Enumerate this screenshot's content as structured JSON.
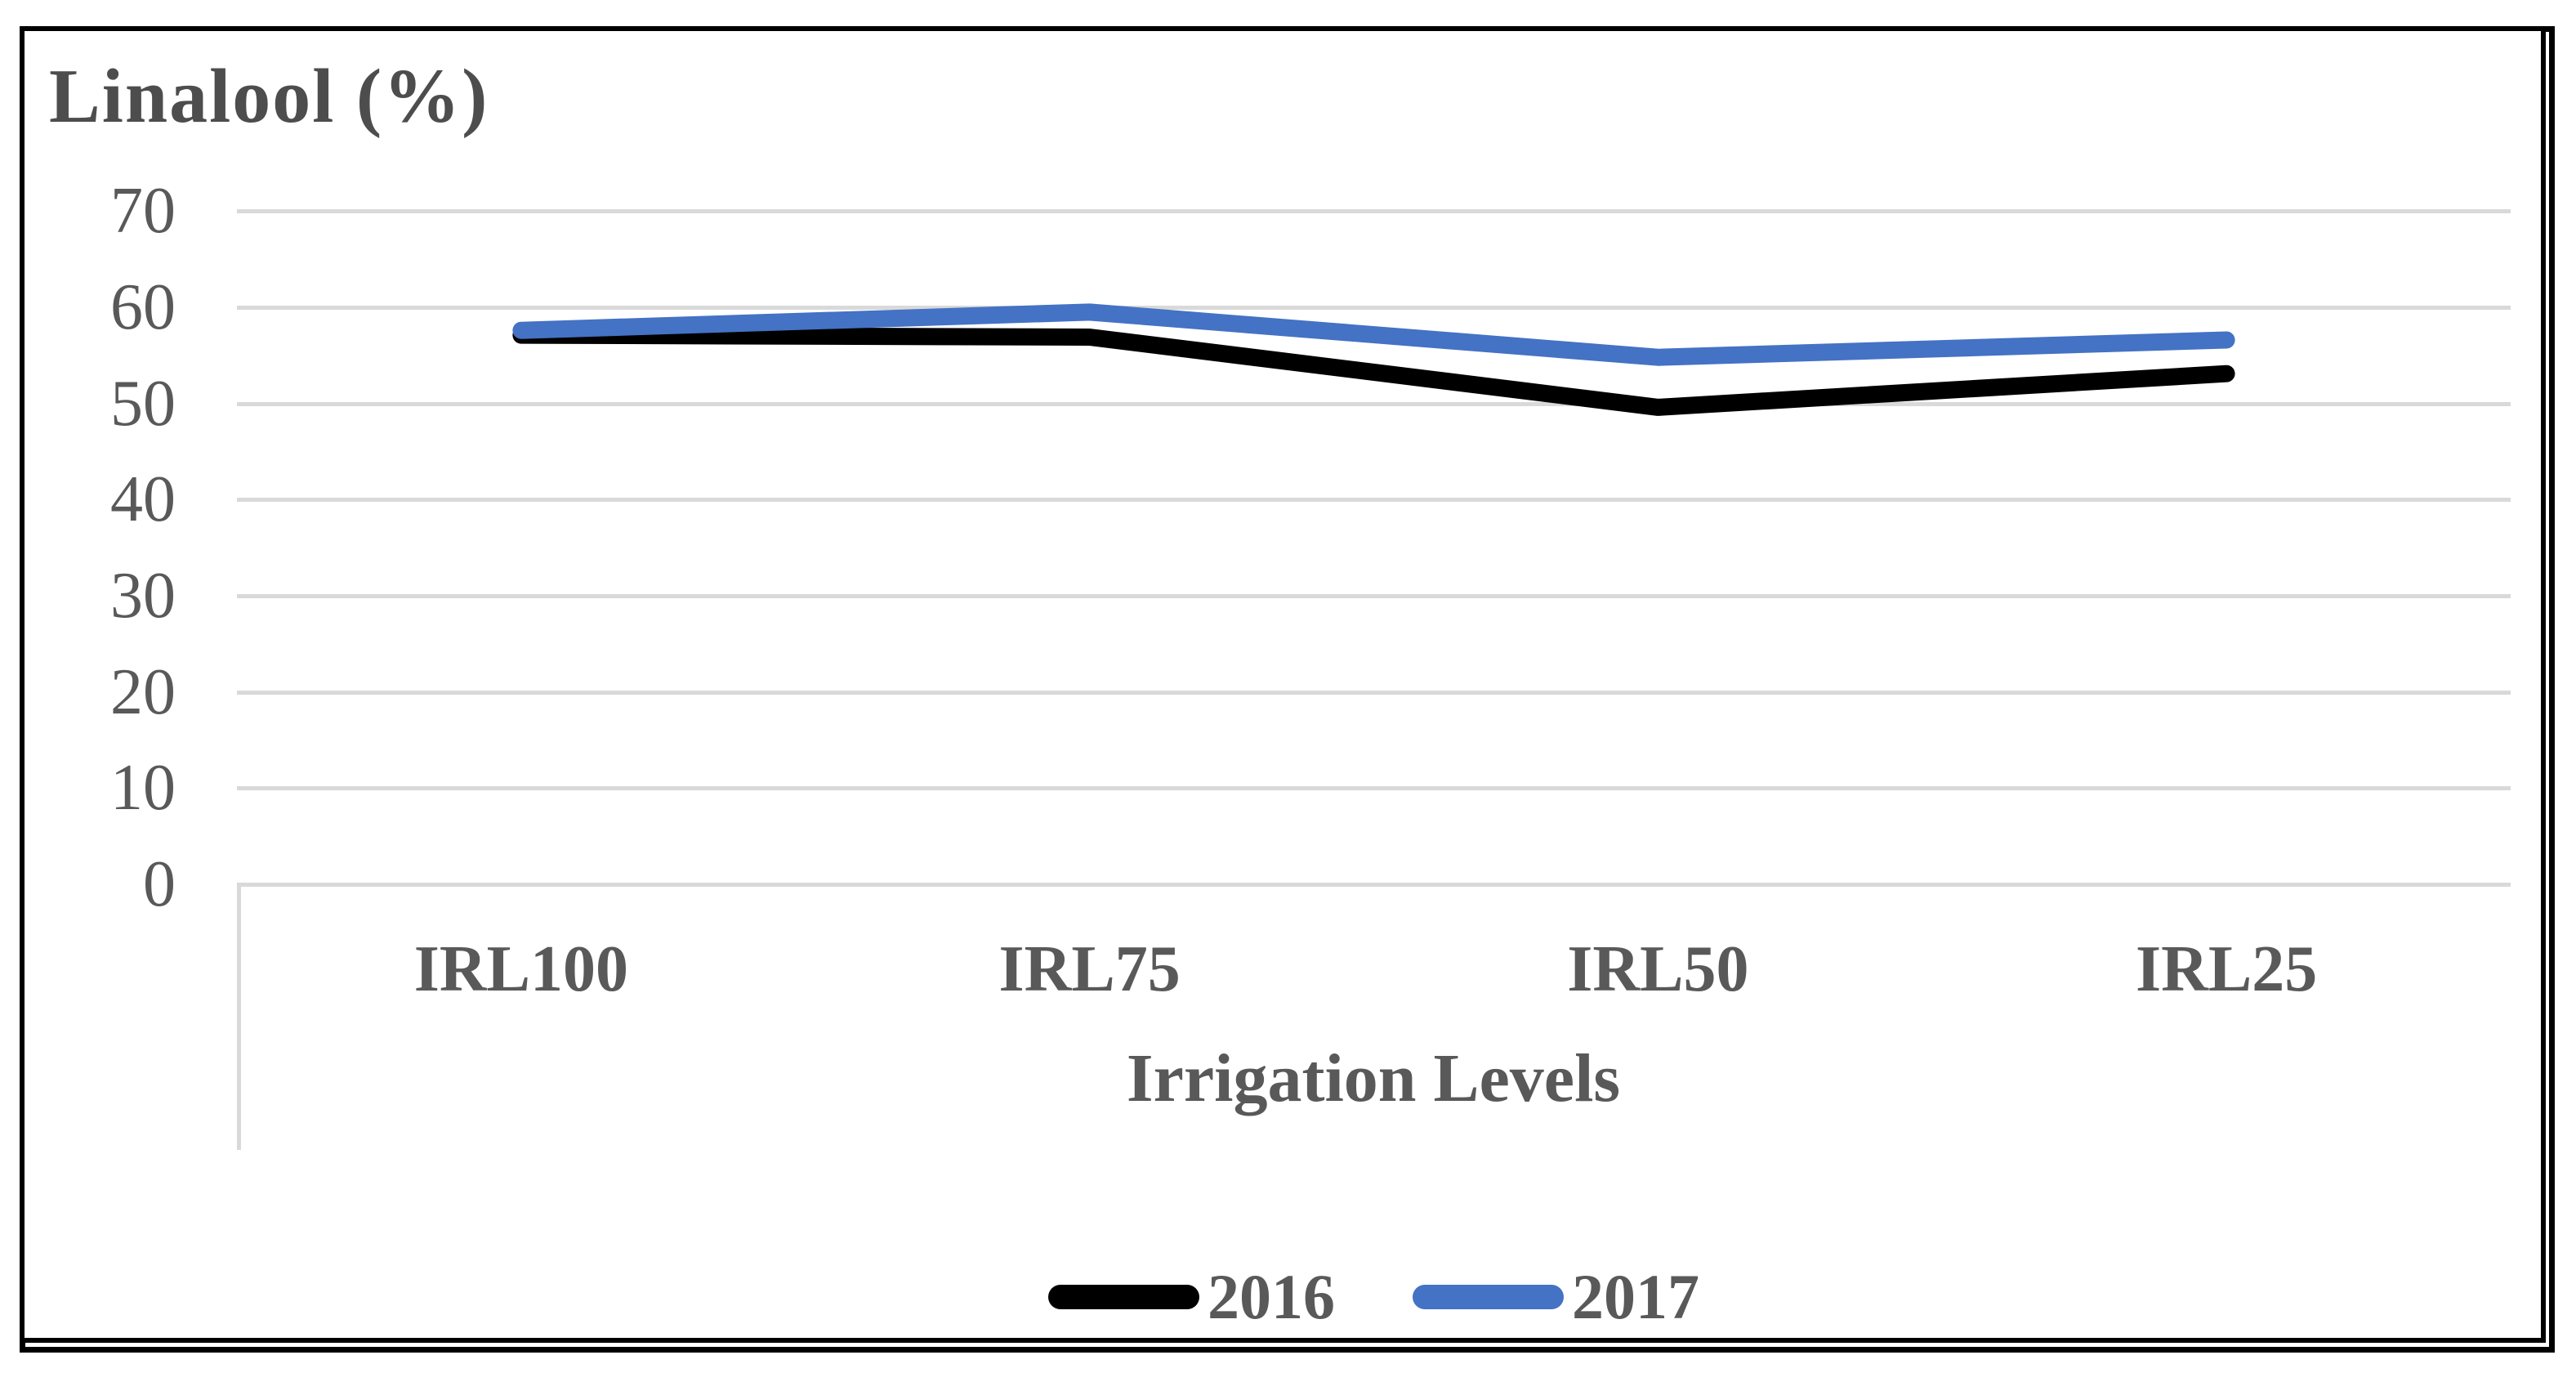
{
  "chart_title": "Linalool  (%)",
  "x_axis_title": "Irrigation Levels",
  "chart_data": {
    "type": "line",
    "categories": [
      "IRL100",
      "IRL75",
      "IRL50",
      "IRL25"
    ],
    "series": [
      {
        "name": "2016",
        "color": "#000000",
        "values": [
          57.1,
          56.9,
          49.6,
          53.1
        ]
      },
      {
        "name": "2017",
        "color": "#4472C4",
        "values": [
          57.6,
          59.5,
          54.8,
          56.6
        ]
      }
    ],
    "title": "Linalool  (%)",
    "xlabel": "Irrigation Levels",
    "ylabel": "",
    "ylim": [
      0,
      70
    ],
    "yticks": [
      70,
      60,
      50,
      40,
      30,
      20,
      10,
      0
    ],
    "grid": true,
    "legend_position": "bottom-center"
  },
  "colors": {
    "series_2016": "#000000",
    "series_2017": "#4472C4",
    "gridline": "#D9D9D9",
    "axis_text": "#595959",
    "title_text": "#4D4D4D",
    "frame_border": "#000000"
  }
}
